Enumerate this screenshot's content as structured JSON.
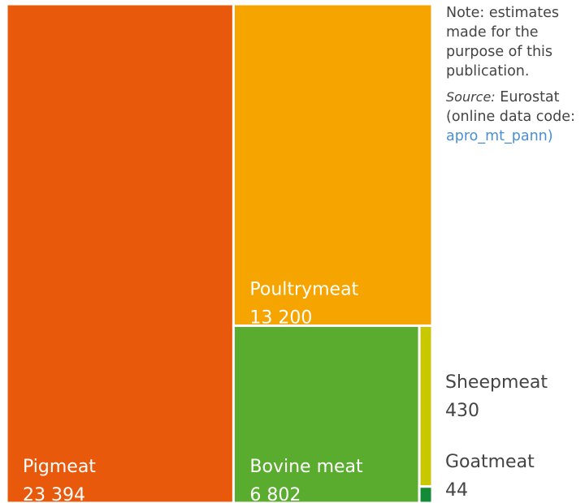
{
  "chart_data": {
    "type": "treemap",
    "categories": [
      "Pigmeat",
      "Poultrymeat",
      "Bovine meat",
      "Sheepmeat",
      "Goatmeat"
    ],
    "values": [
      23394,
      13200,
      6802,
      430,
      44
    ],
    "value_labels": [
      "23 394",
      "13 200",
      "6 802",
      "430",
      "44"
    ],
    "colors": [
      "#e8590c",
      "#f5a400",
      "#5aac2e",
      "#c9c700",
      "#138a36"
    ],
    "note": "Note: estimates made for the purpose of this publication.",
    "source": {
      "label": "Source:",
      "text": "Eurostat (online data code:",
      "code": "apro_mt_pann)"
    }
  }
}
